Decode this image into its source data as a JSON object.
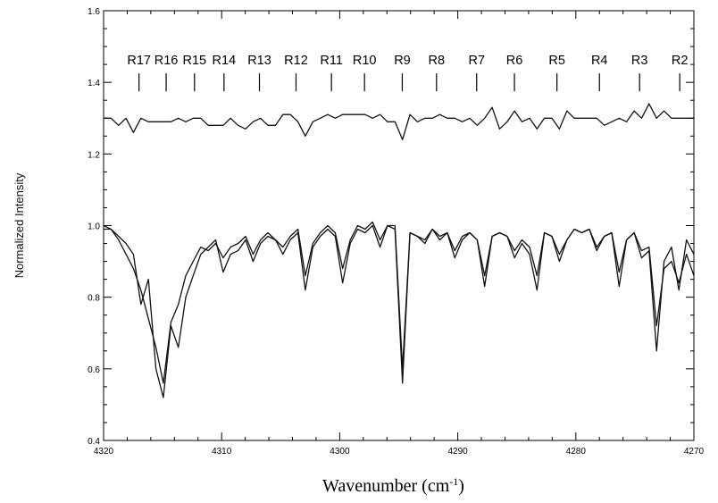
{
  "chart_data": {
    "type": "line",
    "title": "",
    "xlabel": "Wavenumber (cm",
    "xlabel_sup": "-1",
    "xlabel_close": ")",
    "ylabel": "Normalized Intensity",
    "xlim": [
      4320,
      4270
    ],
    "ylim": [
      0.4,
      1.6
    ],
    "x_reversed": true,
    "grid": false,
    "x_ticks": [
      4320,
      4310,
      4300,
      4290,
      4280,
      4270
    ],
    "y_ticks": [
      0.4,
      0.6,
      0.8,
      1.0,
      1.2,
      1.4,
      1.6
    ],
    "x_tick_labels": [
      "4320",
      "4310",
      "4300",
      "4290",
      "4280",
      "4270"
    ],
    "y_tick_labels": [
      "0.4",
      "0.6",
      "0.8",
      "1.0",
      "1.2",
      "1.4",
      "1.6"
    ],
    "line_markers": {
      "labels": [
        "R17",
        "R16",
        "R15",
        "R14",
        "R13",
        "R12",
        "R11",
        "R10",
        "R9",
        "R8",
        "R7",
        "R6",
        "R5",
        "R4",
        "R3",
        "R2"
      ],
      "x": [
        4317.0,
        4314.7,
        4312.3,
        4309.8,
        4306.8,
        4303.7,
        4300.7,
        4297.9,
        4294.7,
        4291.8,
        4288.4,
        4285.2,
        4281.6,
        4278.0,
        4274.6,
        4271.2
      ]
    },
    "series": [
      {
        "values": [
          1.3,
          1.3,
          1.28,
          1.3,
          1.26,
          1.3,
          1.29,
          1.29,
          1.29,
          1.29,
          1.3,
          1.29,
          1.3,
          1.3,
          1.28,
          1.28,
          1.28,
          1.3,
          1.28,
          1.27,
          1.29,
          1.3,
          1.28,
          1.28,
          1.31,
          1.31,
          1.29,
          1.25,
          1.29,
          1.3,
          1.31,
          1.3,
          1.31,
          1.31,
          1.31,
          1.31,
          1.3,
          1.31,
          1.29,
          1.29,
          1.24,
          1.31,
          1.29,
          1.3,
          1.3,
          1.31,
          1.3,
          1.3,
          1.29,
          1.3,
          1.28,
          1.3,
          1.33,
          1.27,
          1.29,
          1.32,
          1.29,
          1.3,
          1.27,
          1.3,
          1.3,
          1.27,
          1.32,
          1.3,
          1.3,
          1.3,
          1.3,
          1.28,
          1.29,
          1.3,
          1.29,
          1.32,
          1.3,
          1.34,
          1.3,
          1.32,
          1.3,
          1.3,
          1.3,
          1.3
        ],
        "x": [
          4320.0,
          4319.37,
          4318.73,
          4318.1,
          4317.47,
          4316.84,
          4316.2,
          4315.57,
          4314.94,
          4314.3,
          4313.67,
          4313.04,
          4312.41,
          4311.77,
          4311.14,
          4310.51,
          4309.87,
          4309.24,
          4308.61,
          4307.97,
          4307.34,
          4306.71,
          4306.08,
          4305.44,
          4304.81,
          4304.18,
          4303.54,
          4302.91,
          4302.28,
          4301.65,
          4301.01,
          4300.38,
          4299.75,
          4299.11,
          4298.48,
          4297.85,
          4297.22,
          4296.58,
          4295.95,
          4295.32,
          4294.68,
          4294.05,
          4293.42,
          4292.78,
          4292.15,
          4291.52,
          4290.89,
          4290.25,
          4289.62,
          4288.99,
          4288.35,
          4287.72,
          4287.09,
          4286.46,
          4285.82,
          4285.19,
          4284.56,
          4283.92,
          4283.29,
          4282.66,
          4282.03,
          4281.39,
          4280.76,
          4280.13,
          4279.49,
          4278.86,
          4278.23,
          4277.59,
          4276.96,
          4276.33,
          4275.7,
          4275.06,
          4274.43,
          4273.8,
          4273.16,
          4272.53,
          4271.9,
          4271.27,
          4270.63,
          4270.0
        ]
      },
      {
        "values": [
          1.0,
          0.99,
          0.97,
          0.95,
          0.92,
          0.78,
          0.85,
          0.6,
          0.52,
          0.72,
          0.66,
          0.8,
          0.86,
          0.92,
          0.94,
          0.96,
          0.87,
          0.92,
          0.93,
          0.96,
          0.9,
          0.95,
          0.97,
          0.96,
          0.92,
          0.96,
          0.98,
          0.82,
          0.94,
          0.97,
          0.99,
          0.97,
          0.84,
          0.95,
          0.99,
          0.98,
          1.0,
          0.94,
          1.0,
          0.99,
          0.56,
          0.98,
          0.97,
          0.95,
          0.99,
          0.96,
          0.98,
          0.91,
          0.96,
          0.98,
          0.96,
          0.83,
          0.97,
          0.98,
          0.97,
          0.91,
          0.95,
          0.92,
          0.82,
          0.98,
          0.97,
          0.9,
          0.96,
          0.99,
          0.98,
          0.99,
          0.93,
          0.97,
          0.98,
          0.83,
          0.96,
          0.98,
          0.91,
          0.93,
          0.65,
          0.9,
          0.94,
          0.82,
          0.96,
          0.92
        ],
        "x": [
          4320.0,
          4319.37,
          4318.73,
          4318.1,
          4317.47,
          4316.84,
          4316.2,
          4315.57,
          4314.94,
          4314.3,
          4313.67,
          4313.04,
          4312.41,
          4311.77,
          4311.14,
          4310.51,
          4309.87,
          4309.24,
          4308.61,
          4307.97,
          4307.34,
          4306.71,
          4306.08,
          4305.44,
          4304.81,
          4304.18,
          4303.54,
          4302.91,
          4302.28,
          4301.65,
          4301.01,
          4300.38,
          4299.75,
          4299.11,
          4298.48,
          4297.85,
          4297.22,
          4296.58,
          4295.95,
          4295.32,
          4294.68,
          4294.05,
          4293.42,
          4292.78,
          4292.15,
          4291.52,
          4290.89,
          4290.25,
          4289.62,
          4288.99,
          4288.35,
          4287.72,
          4287.09,
          4286.46,
          4285.82,
          4285.19,
          4284.56,
          4283.92,
          4283.29,
          4282.66,
          4282.03,
          4281.39,
          4280.76,
          4280.13,
          4279.49,
          4278.86,
          4278.23,
          4277.59,
          4276.96,
          4276.33,
          4275.7,
          4275.06,
          4274.43,
          4273.8,
          4273.16,
          4272.53,
          4271.9,
          4271.27,
          4270.63,
          4270.0
        ]
      },
      {
        "values": [
          0.99,
          0.99,
          0.96,
          0.92,
          0.88,
          0.82,
          0.74,
          0.66,
          0.56,
          0.73,
          0.78,
          0.86,
          0.9,
          0.94,
          0.93,
          0.95,
          0.91,
          0.94,
          0.95,
          0.97,
          0.92,
          0.96,
          0.98,
          0.96,
          0.94,
          0.97,
          0.99,
          0.86,
          0.95,
          0.98,
          1.0,
          0.98,
          0.88,
          0.96,
          1.0,
          0.99,
          1.01,
          0.96,
          1.0,
          1.0,
          0.6,
          0.98,
          0.97,
          0.96,
          0.99,
          0.97,
          0.98,
          0.93,
          0.97,
          0.98,
          0.96,
          0.86,
          0.97,
          0.98,
          0.97,
          0.93,
          0.96,
          0.94,
          0.86,
          0.98,
          0.97,
          0.92,
          0.96,
          0.99,
          0.98,
          0.99,
          0.94,
          0.97,
          0.98,
          0.87,
          0.96,
          0.98,
          0.93,
          0.94,
          0.72,
          0.88,
          0.9,
          0.84,
          0.92,
          0.86
        ],
        "x": [
          4320.0,
          4319.37,
          4318.73,
          4318.1,
          4317.47,
          4316.84,
          4316.2,
          4315.57,
          4314.94,
          4314.3,
          4313.67,
          4313.04,
          4312.41,
          4311.77,
          4311.14,
          4310.51,
          4309.87,
          4309.24,
          4308.61,
          4307.97,
          4307.34,
          4306.71,
          4306.08,
          4305.44,
          4304.81,
          4304.18,
          4303.54,
          4302.91,
          4302.28,
          4301.65,
          4301.01,
          4300.38,
          4299.75,
          4299.11,
          4298.48,
          4297.85,
          4297.22,
          4296.58,
          4295.95,
          4295.32,
          4294.68,
          4294.05,
          4293.42,
          4292.78,
          4292.15,
          4291.52,
          4290.89,
          4290.25,
          4289.62,
          4288.99,
          4288.35,
          4287.72,
          4287.09,
          4286.46,
          4285.82,
          4285.19,
          4284.56,
          4283.92,
          4283.29,
          4282.66,
          4282.03,
          4281.39,
          4280.76,
          4280.13,
          4279.49,
          4278.86,
          4278.23,
          4277.59,
          4276.96,
          4276.33,
          4275.7,
          4275.06,
          4274.43,
          4273.8,
          4273.16,
          4272.53,
          4271.9,
          4271.27,
          4270.63,
          4270.0
        ]
      }
    ],
    "colors": {
      "line": "#111111",
      "axis": "#000000",
      "background": "#ffffff"
    }
  }
}
